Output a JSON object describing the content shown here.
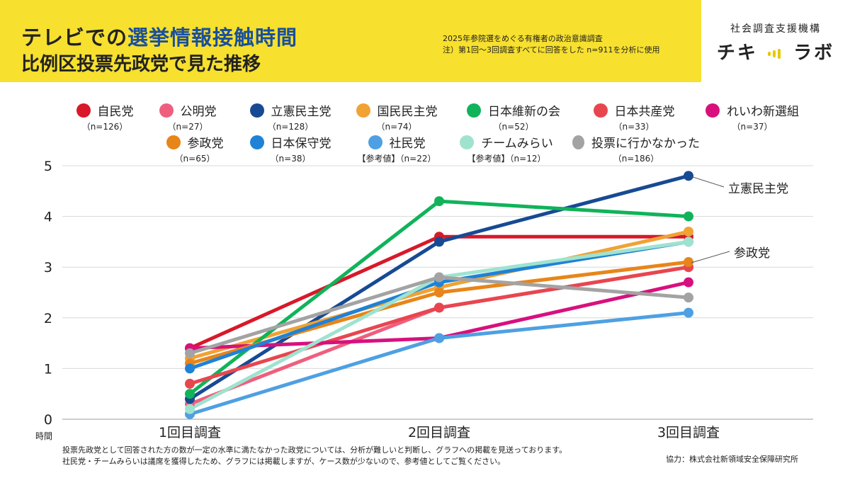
{
  "header": {
    "title_part1": "テレビでの",
    "title_part2": "選挙情報接触時間",
    "title_line2": "比例区投票先政党で見た推移",
    "subtitle_line1": "2025年参院選をめぐる有権者の政治意識調査",
    "subtitle_line2": "注）第1回～3回調査すべてに回答をした n=911を分析に使用"
  },
  "brand": {
    "org": "社会調査支援機構",
    "logo_left": "チキ",
    "logo_right": "ラボ"
  },
  "footer": {
    "note_line1": "投票先政党として回答された方の数が一定の水準に満たなかった政党については、分析が難しいと判断し、グラフへの掲載を見送っております。",
    "note_line2": "社民党・チームみらいは議席を獲得したため、グラフには掲載しますが、ケース数が少ないので、参考値としてご覧ください。",
    "credit": "協力：株式会社新領域安全保障研究所"
  },
  "chart_data": {
    "type": "line",
    "x": [
      "1回目調査",
      "2回目調査",
      "3回目調査"
    ],
    "ylabel": "時間",
    "ylim": [
      0,
      5
    ],
    "yticks": [
      0,
      1,
      2,
      3,
      4,
      5
    ],
    "grid": true,
    "legend_position": "top",
    "series": [
      {
        "name": "自民党",
        "n": "（n=126）",
        "color": "#d7192a",
        "values": [
          1.4,
          3.6,
          3.6
        ]
      },
      {
        "name": "公明党",
        "n": "（n=27）",
        "color": "#ef5f7d",
        "values": [
          0.3,
          2.2,
          3.0
        ]
      },
      {
        "name": "立憲民主党",
        "n": "（n=128）",
        "color": "#174a93",
        "values": [
          0.4,
          3.5,
          4.8
        ]
      },
      {
        "name": "国民民主党",
        "n": "（n=74）",
        "color": "#f0a233",
        "values": [
          1.2,
          2.6,
          3.7
        ]
      },
      {
        "name": "日本維新の会",
        "n": "（n=52）",
        "color": "#10b35a",
        "values": [
          0.5,
          4.3,
          4.0
        ]
      },
      {
        "name": "日本共産党",
        "n": "（n=33）",
        "color": "#e8464f",
        "values": [
          0.7,
          2.2,
          3.0
        ]
      },
      {
        "name": "れいわ新選組",
        "n": "（n=37）",
        "color": "#d8107e",
        "values": [
          1.4,
          1.6,
          2.7
        ]
      },
      {
        "name": "参政党",
        "n": "（n=65）",
        "color": "#e8851a",
        "values": [
          1.1,
          2.5,
          3.1
        ]
      },
      {
        "name": "日本保守党",
        "n": "（n=38）",
        "color": "#1f82d6",
        "values": [
          1.0,
          2.7,
          3.5
        ]
      },
      {
        "name": "社民党",
        "n": "【参考値】（n=22）",
        "color": "#4ea0e2",
        "values": [
          0.1,
          1.6,
          2.1
        ]
      },
      {
        "name": "チームみらい",
        "n": "【参考値】（n=12）",
        "color": "#9fe3cf",
        "values": [
          0.2,
          2.8,
          3.5
        ]
      },
      {
        "name": "投票に行かなかった",
        "n": "（n=186）",
        "color": "#a3a3a3",
        "values": [
          1.3,
          2.8,
          2.4
        ]
      }
    ],
    "annotations": [
      {
        "text": "立憲民主党",
        "series": 2,
        "point": 2
      },
      {
        "text": "参政党",
        "series": 7,
        "point": 2
      }
    ]
  }
}
